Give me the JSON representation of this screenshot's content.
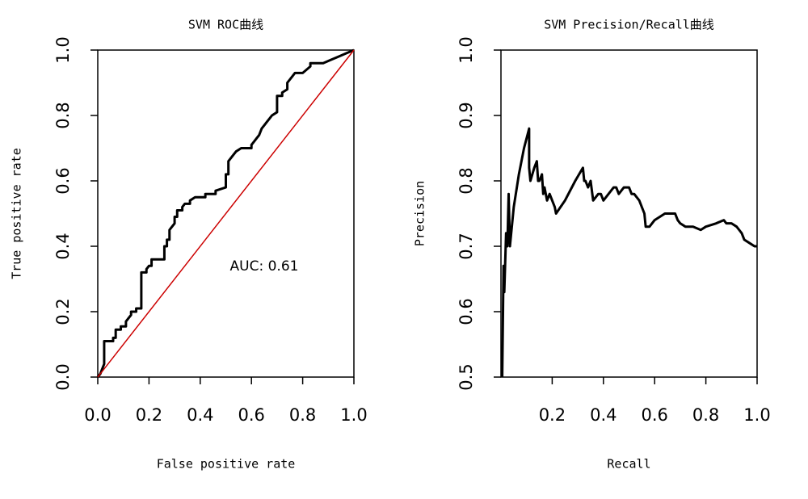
{
  "chart_data": [
    {
      "type": "line",
      "title": "SVM ROC曲线",
      "x_label": "False positive rate",
      "y_label": "True positive rate",
      "annotation": "AUC: 0.61",
      "xlim": [
        0,
        1
      ],
      "ylim": [
        0,
        1
      ],
      "xticks": [
        {
          "value": 0,
          "label": "0.0"
        },
        0.2,
        0.4,
        0.6,
        0.8,
        {
          "value": 1,
          "label": "1.0"
        }
      ],
      "yticks": [
        {
          "value": 0,
          "label": "0.0"
        },
        0.2,
        0.4,
        0.6,
        0.8,
        {
          "value": 1,
          "label": "1.0"
        }
      ],
      "series": [
        {
          "color": "#000000",
          "x": [
            0,
            0.01,
            0.02,
            0.025,
            0.025,
            0.06,
            0.06,
            0.07,
            0.07,
            0.09,
            0.09,
            0.11,
            0.11,
            0.12,
            0.13,
            0.13,
            0.15,
            0.15,
            0.17,
            0.17,
            0.19,
            0.19,
            0.2,
            0.21,
            0.21,
            0.26,
            0.26,
            0.27,
            0.27,
            0.28,
            0.28,
            0.29,
            0.3,
            0.3,
            0.31,
            0.31,
            0.33,
            0.33,
            0.34,
            0.36,
            0.36,
            0.38,
            0.42,
            0.42,
            0.46,
            0.46,
            0.5,
            0.5,
            0.51,
            0.51,
            0.53,
            0.54,
            0.56,
            0.6,
            0.6,
            0.61,
            0.62,
            0.63,
            0.64,
            0.65,
            0.66,
            0.67,
            0.68,
            0.7,
            0.7,
            0.72,
            0.72,
            0.74,
            0.74,
            0.76,
            0.77,
            0.8,
            0.83,
            0.83,
            0.88,
            0.91,
            0.94,
            0.97,
            1
          ],
          "values": [
            0,
            0.01,
            0.03,
            0.04,
            0.11,
            0.11,
            0.12,
            0.12,
            0.145,
            0.145,
            0.155,
            0.155,
            0.17,
            0.18,
            0.19,
            0.2,
            0.2,
            0.21,
            0.21,
            0.32,
            0.32,
            0.33,
            0.34,
            0.34,
            0.36,
            0.36,
            0.4,
            0.4,
            0.42,
            0.42,
            0.45,
            0.46,
            0.47,
            0.49,
            0.49,
            0.51,
            0.51,
            0.52,
            0.53,
            0.53,
            0.54,
            0.55,
            0.55,
            0.56,
            0.56,
            0.57,
            0.58,
            0.62,
            0.62,
            0.66,
            0.68,
            0.69,
            0.7,
            0.7,
            0.71,
            0.72,
            0.73,
            0.74,
            0.76,
            0.77,
            0.78,
            0.79,
            0.8,
            0.81,
            0.86,
            0.86,
            0.87,
            0.88,
            0.9,
            0.92,
            0.93,
            0.93,
            0.95,
            0.96,
            0.96,
            0.97,
            0.98,
            0.99,
            1
          ]
        },
        {
          "color": "#cc0000",
          "x": [
            0,
            1
          ],
          "values": [
            0,
            1
          ]
        }
      ]
    },
    {
      "type": "line",
      "title": "SVM Precision/Recall曲线",
      "x_label": "Recall",
      "y_label": "Precision",
      "xlim": [
        0,
        1
      ],
      "ylim": [
        0.5,
        1
      ],
      "xticks": [
        0.2,
        0.4,
        0.6,
        0.8,
        {
          "value": 1,
          "label": "1.0"
        }
      ],
      "yticks": [
        0.5,
        0.6,
        0.7,
        0.8,
        0.9,
        {
          "value": 1,
          "label": "1.0"
        }
      ],
      "series": [
        {
          "color": "#000000",
          "x": [
            0.005,
            0.01,
            0.013,
            0.02,
            0.025,
            0.03,
            0.035,
            0.05,
            0.07,
            0.09,
            0.11,
            0.11,
            0.115,
            0.13,
            0.14,
            0.145,
            0.15,
            0.16,
            0.165,
            0.17,
            0.18,
            0.19,
            0.2,
            0.21,
            0.215,
            0.25,
            0.29,
            0.32,
            0.325,
            0.33,
            0.34,
            0.35,
            0.36,
            0.38,
            0.39,
            0.4,
            0.42,
            0.44,
            0.45,
            0.46,
            0.48,
            0.5,
            0.51,
            0.52,
            0.54,
            0.55,
            0.56,
            0.565,
            0.58,
            0.6,
            0.64,
            0.66,
            0.68,
            0.69,
            0.7,
            0.72,
            0.75,
            0.78,
            0.8,
            0.84,
            0.87,
            0.88,
            0.9,
            0.92,
            0.93,
            0.94,
            0.95,
            0.97,
            0.99,
            1
          ],
          "values": [
            0.5,
            0.67,
            0.63,
            0.72,
            0.7,
            0.78,
            0.7,
            0.76,
            0.81,
            0.85,
            0.88,
            0.82,
            0.8,
            0.82,
            0.83,
            0.8,
            0.8,
            0.81,
            0.78,
            0.79,
            0.77,
            0.78,
            0.77,
            0.76,
            0.75,
            0.77,
            0.8,
            0.82,
            0.8,
            0.8,
            0.79,
            0.8,
            0.77,
            0.78,
            0.78,
            0.77,
            0.78,
            0.79,
            0.79,
            0.78,
            0.79,
            0.79,
            0.78,
            0.78,
            0.77,
            0.76,
            0.75,
            0.73,
            0.73,
            0.74,
            0.75,
            0.75,
            0.75,
            0.74,
            0.735,
            0.73,
            0.73,
            0.725,
            0.73,
            0.735,
            0.74,
            0.735,
            0.735,
            0.73,
            0.725,
            0.72,
            0.71,
            0.705,
            0.7,
            0.7
          ]
        }
      ]
    }
  ]
}
